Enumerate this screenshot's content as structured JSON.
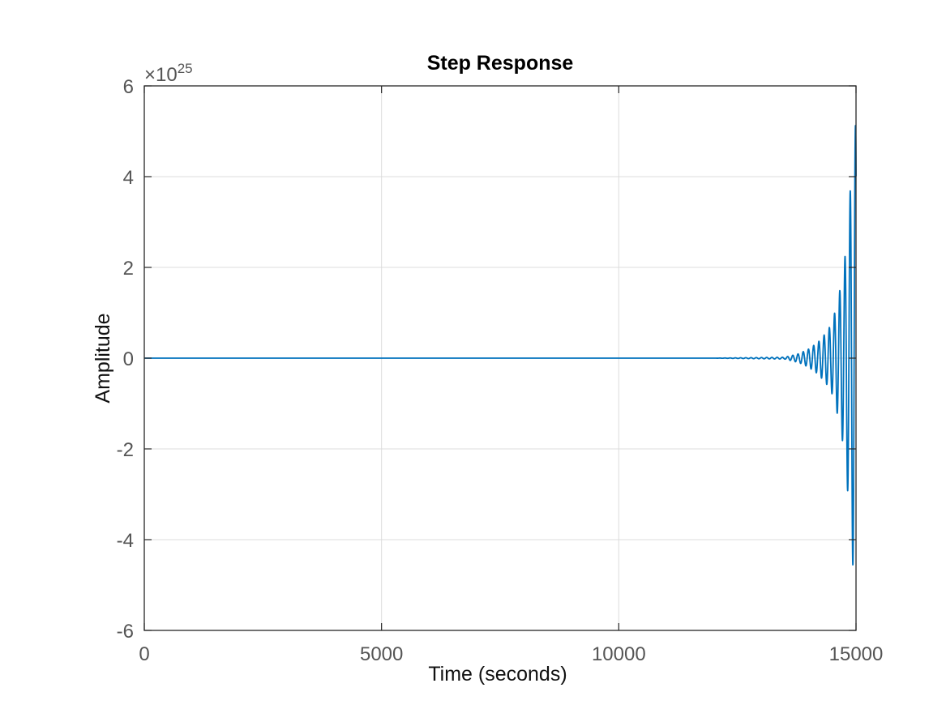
{
  "chart_data": {
    "type": "line",
    "title": "Step Response",
    "xlabel": "Time (seconds)",
    "ylabel": "Amplitude",
    "xlim": [
      0,
      15000
    ],
    "ylim": [
      -6,
      6
    ],
    "y_multiplier": {
      "base": "×10",
      "exponent": "25"
    },
    "x_ticks": [
      0,
      5000,
      10000,
      15000
    ],
    "x_tick_labels": [
      "0",
      "5000",
      "10000",
      "15000"
    ],
    "y_ticks": [
      -6,
      -4,
      -2,
      0,
      2,
      4,
      6
    ],
    "y_tick_labels": [
      "-6",
      "-4",
      "-2",
      "0",
      "2",
      "4",
      "6"
    ],
    "grid": true,
    "legend": "none",
    "series": [
      {
        "color": "#0072BD",
        "envelope": {
          "x": [
            0,
            12000,
            13500,
            13800,
            14000,
            14200,
            14400,
            14500,
            14600,
            14700,
            14800,
            14850,
            14900,
            14950,
            15000
          ],
          "upper": [
            0,
            0,
            0.02,
            0.1,
            0.2,
            0.35,
            0.6,
            0.8,
            1.2,
            1.7,
            2.5,
            3.3,
            4.0,
            4.6,
            5.3
          ],
          "lower": [
            0,
            0,
            -0.02,
            -0.1,
            -0.2,
            -0.35,
            -0.6,
            -0.8,
            -1.2,
            -1.7,
            -2.6,
            -3.3,
            -4.1,
            -4.8,
            -5.5
          ]
        },
        "oscillation_period": 110
      }
    ]
  }
}
